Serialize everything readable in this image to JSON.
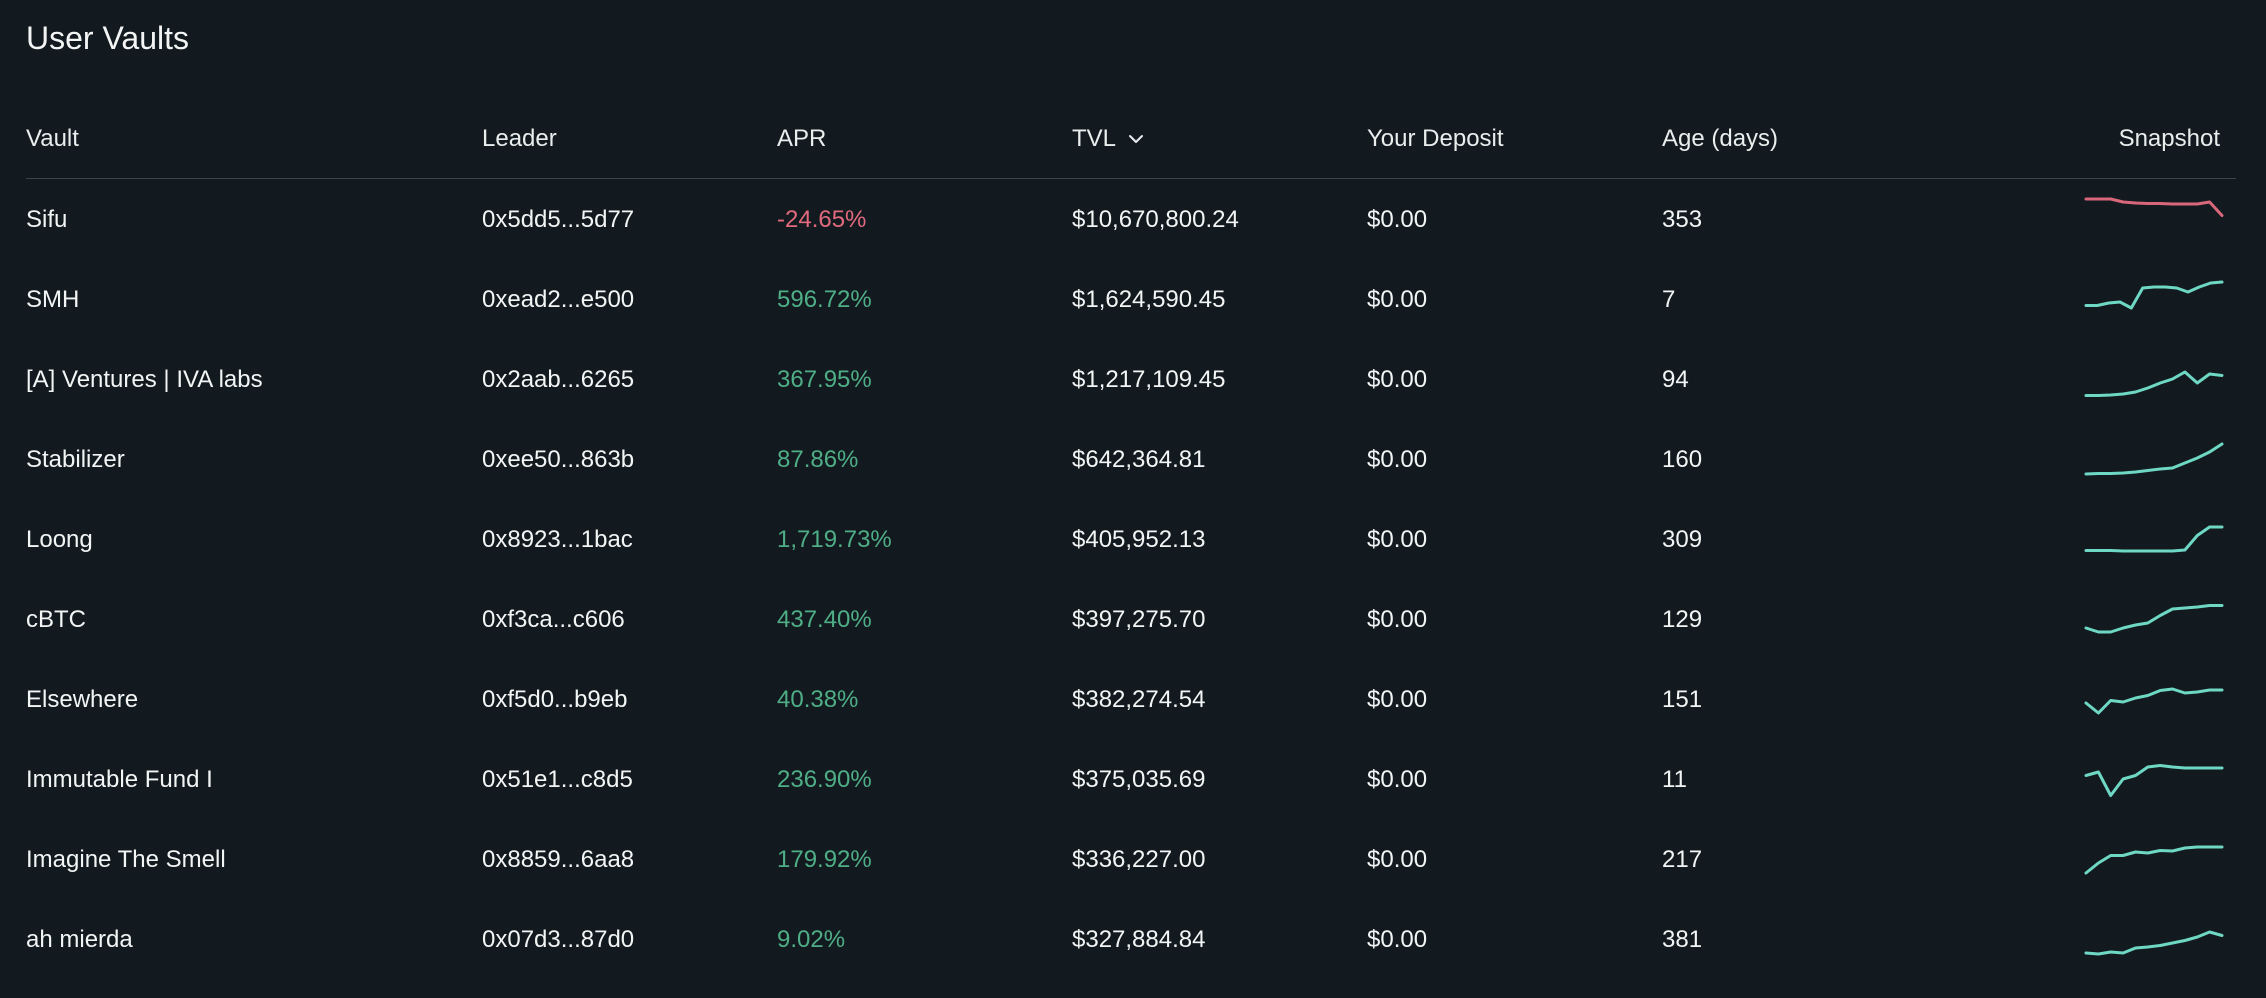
{
  "title": "User Vaults",
  "colors": {
    "background": "#121a20",
    "positive": "#4fae86",
    "negative": "#e16a7d",
    "spark_up": "#6ed8c4",
    "spark_down": "#d9677a"
  },
  "columns": {
    "vault": "Vault",
    "leader": "Leader",
    "apr": "APR",
    "tvl": "TVL",
    "deposit": "Your Deposit",
    "age": "Age (days)",
    "snapshot": "Snapshot"
  },
  "sort_icon": "chevron-down-icon",
  "rows": [
    {
      "vault": "Sifu",
      "leader": "0x5dd5...5d77",
      "apr": "-24.65%",
      "apr_sign": "neg",
      "tvl": "$10,670,800.24",
      "deposit": "$0.00",
      "age": "353",
      "trend": "down",
      "spark": [
        0.88,
        0.88,
        0.88,
        0.82,
        0.8,
        0.79,
        0.79,
        0.78,
        0.78,
        0.78,
        0.82,
        0.55
      ]
    },
    {
      "vault": "SMH",
      "leader": "0xead2...e500",
      "apr": "596.72%",
      "apr_sign": "pos",
      "tvl": "$1,624,590.45",
      "deposit": "$0.00",
      "age": "7",
      "trend": "up",
      "spark": [
        0.35,
        0.35,
        0.4,
        0.42,
        0.3,
        0.7,
        0.72,
        0.72,
        0.7,
        0.62,
        0.72,
        0.8,
        0.82
      ]
    },
    {
      "vault": "[A] Ventures | IVA labs",
      "leader": "0x2aab...6265",
      "apr": "367.95%",
      "apr_sign": "pos",
      "tvl": "$1,217,109.45",
      "deposit": "$0.00",
      "age": "94",
      "trend": "up",
      "spark": [
        0.15,
        0.15,
        0.16,
        0.18,
        0.22,
        0.3,
        0.4,
        0.48,
        0.62,
        0.4,
        0.58,
        0.55
      ]
    },
    {
      "vault": "Stabilizer",
      "leader": "0xee50...863b",
      "apr": "87.86%",
      "apr_sign": "pos",
      "tvl": "$642,364.81",
      "deposit": "$0.00",
      "age": "160",
      "trend": "up",
      "spark": [
        0.18,
        0.19,
        0.19,
        0.2,
        0.22,
        0.25,
        0.28,
        0.3,
        0.4,
        0.5,
        0.62,
        0.78
      ]
    },
    {
      "vault": "Loong",
      "leader": "0x8923...1bac",
      "apr": "1,719.73%",
      "apr_sign": "pos",
      "tvl": "$405,952.13",
      "deposit": "$0.00",
      "age": "309",
      "trend": "up",
      "spark": [
        0.25,
        0.25,
        0.25,
        0.24,
        0.24,
        0.24,
        0.24,
        0.24,
        0.26,
        0.55,
        0.72,
        0.72
      ]
    },
    {
      "vault": "cBTC",
      "leader": "0xf3ca...c606",
      "apr": "437.40%",
      "apr_sign": "pos",
      "tvl": "$397,275.70",
      "deposit": "$0.00",
      "age": "129",
      "trend": "up",
      "spark": [
        0.3,
        0.22,
        0.22,
        0.3,
        0.36,
        0.4,
        0.55,
        0.68,
        0.7,
        0.72,
        0.75,
        0.75
      ]
    },
    {
      "vault": "Elsewhere",
      "leader": "0xf5d0...b9eb",
      "apr": "40.38%",
      "apr_sign": "pos",
      "tvl": "$382,274.54",
      "deposit": "$0.00",
      "age": "151",
      "trend": "up",
      "spark": [
        0.4,
        0.2,
        0.45,
        0.42,
        0.5,
        0.55,
        0.65,
        0.68,
        0.6,
        0.62,
        0.66,
        0.66
      ]
    },
    {
      "vault": "Immutable Fund I",
      "leader": "0x51e1...c8d5",
      "apr": "236.90%",
      "apr_sign": "pos",
      "tvl": "$375,035.69",
      "deposit": "$0.00",
      "age": "11",
      "trend": "up",
      "spark": [
        0.55,
        0.62,
        0.15,
        0.48,
        0.55,
        0.72,
        0.75,
        0.72,
        0.7,
        0.7,
        0.7,
        0.7
      ]
    },
    {
      "vault": "Imagine The Smell",
      "leader": "0x8859...6aa8",
      "apr": "179.92%",
      "apr_sign": "pos",
      "tvl": "$336,227.00",
      "deposit": "$0.00",
      "age": "217",
      "trend": "up",
      "spark": [
        0.2,
        0.4,
        0.55,
        0.55,
        0.62,
        0.6,
        0.65,
        0.64,
        0.7,
        0.72,
        0.72,
        0.72
      ]
    },
    {
      "vault": "ah mierda",
      "leader": "0x07d3...87d0",
      "apr": "9.02%",
      "apr_sign": "pos",
      "tvl": "$327,884.84",
      "deposit": "$0.00",
      "age": "381",
      "trend": "up",
      "spark": [
        0.2,
        0.18,
        0.22,
        0.2,
        0.3,
        0.32,
        0.35,
        0.4,
        0.45,
        0.52,
        0.62,
        0.55
      ]
    }
  ]
}
